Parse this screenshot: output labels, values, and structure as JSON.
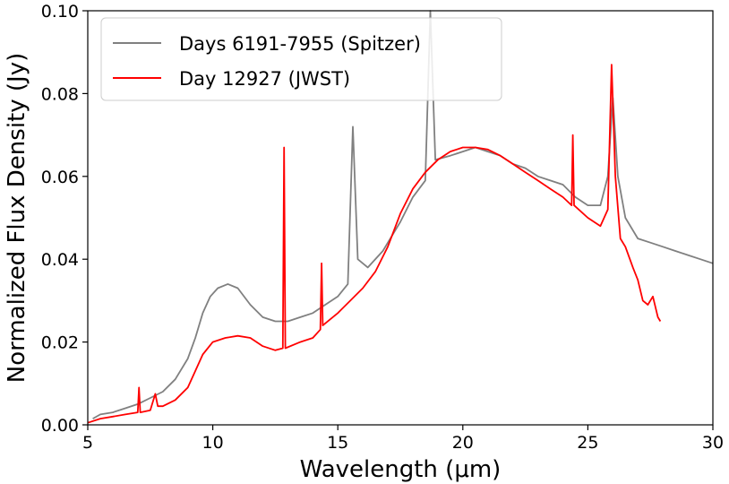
{
  "chart_data": {
    "type": "line",
    "xlabel": "Wavelength (μm)",
    "ylabel": "Normalized Flux Density (Jy)",
    "xlim": [
      5,
      30
    ],
    "ylim": [
      0,
      0.1
    ],
    "xticks": [
      5,
      10,
      15,
      20,
      25,
      30
    ],
    "xtick_labels": [
      "5",
      "10",
      "15",
      "20",
      "25",
      "30"
    ],
    "yticks": [
      0,
      0.02,
      0.04,
      0.06,
      0.08,
      0.1
    ],
    "ytick_labels": [
      "0.00",
      "0.02",
      "0.04",
      "0.06",
      "0.08",
      "0.10"
    ],
    "grid": false,
    "legend_position": "top-left",
    "legend": [
      {
        "label": "Days 6191-7955 (Spitzer)",
        "color": "#808080"
      },
      {
        "label": "Day 12927 (JWST)",
        "color": "#ff0000"
      }
    ],
    "series": [
      {
        "name": "Days 6191-7955 (Spitzer)",
        "color": "#808080",
        "points": [
          [
            5.2,
            0.0015
          ],
          [
            5.5,
            0.0025
          ],
          [
            6.0,
            0.003
          ],
          [
            6.5,
            0.004
          ],
          [
            7.0,
            0.005
          ],
          [
            7.5,
            0.0065
          ],
          [
            8.0,
            0.008
          ],
          [
            8.5,
            0.011
          ],
          [
            9.0,
            0.016
          ],
          [
            9.3,
            0.021
          ],
          [
            9.6,
            0.027
          ],
          [
            9.9,
            0.031
          ],
          [
            10.2,
            0.033
          ],
          [
            10.6,
            0.034
          ],
          [
            11.0,
            0.033
          ],
          [
            11.5,
            0.029
          ],
          [
            12.0,
            0.026
          ],
          [
            12.5,
            0.025
          ],
          [
            13.0,
            0.025
          ],
          [
            13.5,
            0.026
          ],
          [
            14.0,
            0.027
          ],
          [
            14.5,
            0.029
          ],
          [
            15.0,
            0.031
          ],
          [
            15.4,
            0.034
          ],
          [
            15.6,
            0.072
          ],
          [
            15.8,
            0.04
          ],
          [
            16.2,
            0.038
          ],
          [
            16.8,
            0.042
          ],
          [
            17.5,
            0.049
          ],
          [
            18.0,
            0.055
          ],
          [
            18.5,
            0.059
          ],
          [
            18.7,
            0.1
          ],
          [
            18.9,
            0.064
          ],
          [
            19.5,
            0.065
          ],
          [
            20.0,
            0.066
          ],
          [
            20.5,
            0.067
          ],
          [
            21.0,
            0.066
          ],
          [
            21.5,
            0.065
          ],
          [
            22.0,
            0.063
          ],
          [
            22.5,
            0.062
          ],
          [
            23.0,
            0.06
          ],
          [
            23.5,
            0.059
          ],
          [
            24.0,
            0.058
          ],
          [
            24.5,
            0.055
          ],
          [
            25.0,
            0.053
          ],
          [
            25.5,
            0.053
          ],
          [
            25.8,
            0.06
          ],
          [
            26.0,
            0.079
          ],
          [
            26.2,
            0.06
          ],
          [
            26.5,
            0.05
          ],
          [
            27.0,
            0.045
          ],
          [
            27.5,
            0.044
          ],
          [
            28.0,
            0.043
          ],
          [
            28.5,
            0.042
          ],
          [
            29.0,
            0.041
          ],
          [
            29.5,
            0.04
          ],
          [
            30.0,
            0.039
          ]
        ]
      },
      {
        "name": "Day 12927 (JWST)",
        "color": "#ff0000",
        "points": [
          [
            5.0,
            0.0005
          ],
          [
            5.5,
            0.0015
          ],
          [
            6.0,
            0.002
          ],
          [
            6.5,
            0.0025
          ],
          [
            7.0,
            0.003
          ],
          [
            7.05,
            0.009
          ],
          [
            7.1,
            0.003
          ],
          [
            7.5,
            0.0035
          ],
          [
            7.7,
            0.0075
          ],
          [
            7.8,
            0.0045
          ],
          [
            8.0,
            0.0045
          ],
          [
            8.5,
            0.006
          ],
          [
            9.0,
            0.009
          ],
          [
            9.3,
            0.013
          ],
          [
            9.6,
            0.017
          ],
          [
            10.0,
            0.02
          ],
          [
            10.5,
            0.021
          ],
          [
            11.0,
            0.0215
          ],
          [
            11.5,
            0.021
          ],
          [
            12.0,
            0.019
          ],
          [
            12.5,
            0.018
          ],
          [
            12.8,
            0.0185
          ],
          [
            12.85,
            0.067
          ],
          [
            12.9,
            0.0185
          ],
          [
            13.5,
            0.02
          ],
          [
            14.0,
            0.021
          ],
          [
            14.3,
            0.023
          ],
          [
            14.35,
            0.039
          ],
          [
            14.4,
            0.024
          ],
          [
            15.0,
            0.027
          ],
          [
            15.5,
            0.03
          ],
          [
            16.0,
            0.033
          ],
          [
            16.5,
            0.037
          ],
          [
            17.0,
            0.043
          ],
          [
            17.5,
            0.051
          ],
          [
            18.0,
            0.057
          ],
          [
            18.5,
            0.061
          ],
          [
            19.0,
            0.064
          ],
          [
            19.5,
            0.066
          ],
          [
            20.0,
            0.067
          ],
          [
            20.5,
            0.067
          ],
          [
            21.0,
            0.0665
          ],
          [
            21.5,
            0.065
          ],
          [
            22.0,
            0.063
          ],
          [
            22.5,
            0.061
          ],
          [
            23.0,
            0.059
          ],
          [
            23.5,
            0.057
          ],
          [
            24.0,
            0.055
          ],
          [
            24.35,
            0.053
          ],
          [
            24.4,
            0.07
          ],
          [
            24.45,
            0.053
          ],
          [
            25.0,
            0.05
          ],
          [
            25.5,
            0.048
          ],
          [
            25.8,
            0.052
          ],
          [
            25.95,
            0.087
          ],
          [
            26.1,
            0.06
          ],
          [
            26.3,
            0.045
          ],
          [
            26.5,
            0.043
          ],
          [
            26.8,
            0.038
          ],
          [
            27.0,
            0.035
          ],
          [
            27.2,
            0.03
          ],
          [
            27.4,
            0.029
          ],
          [
            27.6,
            0.031
          ],
          [
            27.8,
            0.026
          ],
          [
            27.9,
            0.025
          ]
        ]
      }
    ]
  }
}
